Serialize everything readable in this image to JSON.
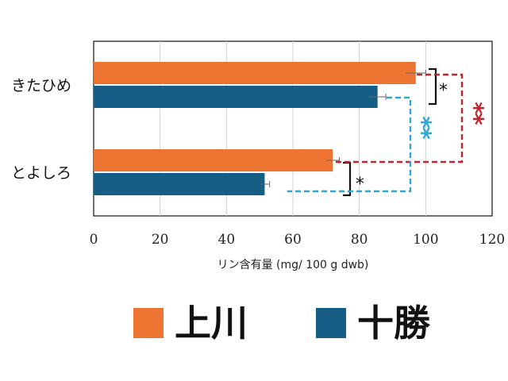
{
  "chart_data": {
    "type": "bar",
    "orientation": "horizontal",
    "categories": [
      "きたひめ",
      "とよしろ"
    ],
    "series": [
      {
        "name": "上川",
        "color": "#ED7330",
        "values": [
          97,
          72
        ],
        "errors": [
          3,
          2
        ]
      },
      {
        "name": "十勝",
        "color": "#165E85",
        "values": [
          85.5,
          51.5
        ],
        "errors": [
          2.5,
          1.5
        ]
      }
    ],
    "xlabel": "リン含有量 (mg/ 100 g dwb)",
    "xlim": [
      0,
      120
    ],
    "xticks": [
      0,
      20,
      40,
      60,
      80,
      100,
      120
    ],
    "grid": true,
    "legend_position": "bottom",
    "annotations": [
      {
        "text": "*",
        "color": "#111111",
        "meaning": "きたひめ 上川 vs 十勝"
      },
      {
        "text": "*",
        "color": "#111111",
        "meaning": "とよしろ 上川 vs 十勝"
      },
      {
        "text": "**",
        "color": "#C0282C",
        "meaning": "上川 きたひめ vs とよしろ"
      },
      {
        "text": "**",
        "color": "#2FA6D6",
        "meaning": "十勝 きたひめ vs とよしろ"
      }
    ]
  }
}
